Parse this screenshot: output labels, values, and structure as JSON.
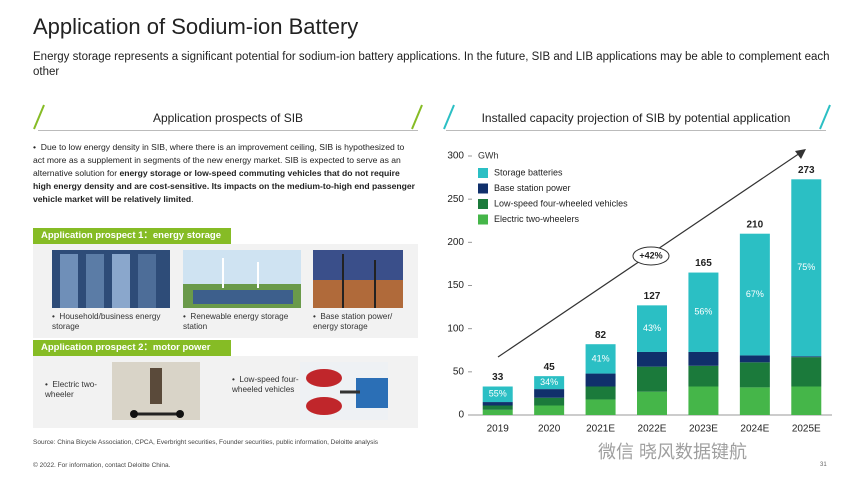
{
  "header": {
    "title": "Application of Sodium-ion Battery",
    "subtitle": "Energy storage represents a significant potential for sodium-ion battery applications. In the future, SIB and LIB applications may be able to complement each other"
  },
  "left_panel": {
    "heading": "Application prospects of SIB",
    "bullet": [
      "Due to low energy density in SIB, where there is an improvement ceiling, SIB is hypothesized to act more as a supplement in segments of the new energy market. SIB is expected to serve as an alternative solution for ",
      "energy storage or low-speed commuting vehicles that do not require high energy density and are cost-sensitive. Its impacts on the medium-to-high end passenger vehicle market will be relatively limited",
      "."
    ],
    "prospect1": {
      "label": "Application prospect 1：energy storage",
      "items": [
        "Household/business energy storage",
        "Renewable energy storage station",
        "Base station power/ energy storage"
      ]
    },
    "prospect2": {
      "label": "Application prospect 2：motor power",
      "items": [
        "Electric two-wheeler",
        "Low-speed four-wheeled vehicles"
      ]
    }
  },
  "source": "Source: China Bicycle Association, CPCA, Everbright securities, Founder securities, public information, Deloitte analysis",
  "footer": "© 2022. For information, contact Deloitte China.",
  "page_number": "31",
  "watermark": "微信 晓风数据键航",
  "chart_data": {
    "type": "bar",
    "stacked": true,
    "title": "Installed capacity projection of SIB by potential application",
    "y_unit": "GWh",
    "categories": [
      "2019",
      "2020",
      "2021E",
      "2022E",
      "2023E",
      "2024E",
      "2025E"
    ],
    "series": [
      {
        "name": "Storage batteries",
        "color": "#2bbfc4",
        "values": [
          18,
          15,
          34,
          54,
          92,
          141,
          205
        ]
      },
      {
        "name": "Base station power",
        "color": "#10306b",
        "values": [
          4,
          10,
          15,
          17,
          16,
          8,
          1
        ]
      },
      {
        "name": "Low-speed four-wheeled vehicles",
        "color": "#1b7a3b",
        "values": [
          5,
          9,
          15,
          29,
          24,
          29,
          34
        ]
      },
      {
        "name": "Electric two-wheelers",
        "color": "#45b649",
        "values": [
          6,
          11,
          18,
          27,
          33,
          32,
          33
        ]
      }
    ],
    "totals": [
      33,
      45,
      82,
      127,
      165,
      210,
      273
    ],
    "share_labels": [
      "55%",
      "34%",
      "41%",
      "43%",
      "56%",
      "67%",
      "75%"
    ],
    "annotation": "+42%",
    "ylim": [
      0,
      300
    ],
    "yticks": [
      0,
      50,
      100,
      150,
      200,
      250,
      300
    ]
  }
}
